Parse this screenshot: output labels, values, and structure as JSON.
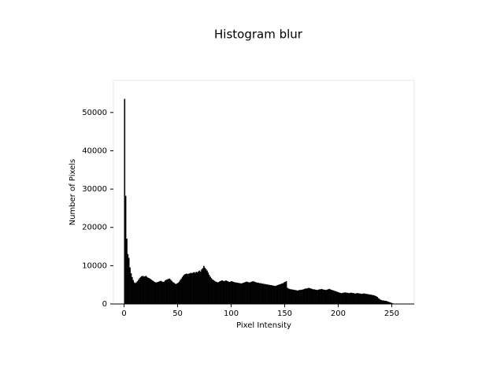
{
  "chart_data": {
    "type": "histogram",
    "title": "Histogram blur",
    "xlabel": "Pixel Intensity",
    "ylabel": "Number of Pixels",
    "color": "#000000",
    "bins": [
      0,
      1,
      2,
      3,
      4,
      5,
      6,
      7,
      8,
      9,
      10,
      11,
      12,
      13,
      14,
      15,
      16,
      17,
      18,
      19,
      20,
      21,
      22,
      23,
      24,
      25,
      26,
      27,
      28,
      29,
      30,
      31,
      32,
      33,
      34,
      35,
      36,
      37,
      38,
      39,
      40,
      41,
      42,
      43,
      44,
      45,
      46,
      47,
      48,
      49,
      50,
      51,
      52,
      53,
      54,
      55,
      56,
      57,
      58,
      59,
      60,
      61,
      62,
      63,
      64,
      65,
      66,
      67,
      68,
      69,
      70,
      71,
      72,
      73,
      74,
      75,
      76,
      77,
      78,
      79,
      80,
      81,
      82,
      83,
      84,
      85,
      86,
      87,
      88,
      89,
      90,
      91,
      92,
      93,
      94,
      95,
      96,
      97,
      98,
      99,
      100,
      101,
      102,
      103,
      104,
      105,
      106,
      107,
      108,
      109,
      110,
      111,
      112,
      113,
      114,
      115,
      116,
      117,
      118,
      119,
      120,
      121,
      122,
      123,
      124,
      125,
      126,
      127,
      128,
      129,
      130,
      131,
      132,
      133,
      134,
      135,
      136,
      137,
      138,
      139,
      140,
      141,
      142,
      143,
      144,
      145,
      146,
      147,
      148,
      149,
      150,
      151,
      152,
      153,
      154,
      155,
      156,
      157,
      158,
      159,
      160,
      161,
      162,
      163,
      164,
      165,
      166,
      167,
      168,
      169,
      170,
      171,
      172,
      173,
      174,
      175,
      176,
      177,
      178,
      179,
      180,
      181,
      182,
      183,
      184,
      185,
      186,
      187,
      188,
      189,
      190,
      191,
      192,
      193,
      194,
      195,
      196,
      197,
      198,
      199,
      200,
      201,
      202,
      203,
      204,
      205,
      206,
      207,
      208,
      209,
      210,
      211,
      212,
      213,
      214,
      215,
      216,
      217,
      218,
      219,
      220,
      221,
      222,
      223,
      224,
      225,
      226,
      227,
      228,
      229,
      230,
      231,
      232,
      233,
      234,
      235,
      236,
      237,
      238,
      239,
      240,
      241,
      242,
      243,
      244,
      245,
      246,
      247,
      248,
      249,
      250,
      251,
      252,
      253,
      254,
      255,
      256
    ],
    "counts": [
      53500,
      28200,
      17000,
      13000,
      12000,
      9500,
      8000,
      7000,
      6200,
      5600,
      5400,
      5600,
      5900,
      6300,
      6700,
      7000,
      7200,
      7300,
      7100,
      7200,
      7300,
      7000,
      6800,
      6700,
      6500,
      6300,
      6100,
      5900,
      5700,
      5600,
      5600,
      5700,
      5800,
      5900,
      6000,
      5800,
      5700,
      5800,
      6100,
      6300,
      6400,
      6500,
      6600,
      6300,
      6000,
      5700,
      5500,
      5300,
      5200,
      5300,
      5500,
      5800,
      6200,
      6600,
      7000,
      7400,
      7700,
      7800,
      7900,
      7800,
      7900,
      8000,
      8100,
      8000,
      8200,
      8300,
      8100,
      8400,
      8200,
      8500,
      8700,
      8400,
      9000,
      9300,
      9900,
      9400,
      9100,
      8700,
      8200,
      7600,
      7100,
      6700,
      6400,
      6200,
      6000,
      5800,
      5700,
      5600,
      5700,
      5900,
      6000,
      6100,
      6000,
      5900,
      6000,
      6100,
      5900,
      5800,
      5700,
      5800,
      5900,
      5800,
      5700,
      5600,
      5600,
      5500,
      5500,
      5400,
      5400,
      5300,
      5400,
      5500,
      5600,
      5700,
      5800,
      5700,
      5600,
      5600,
      5700,
      5800,
      5900,
      5800,
      5700,
      5600,
      5500,
      5500,
      5400,
      5400,
      5300,
      5300,
      5200,
      5200,
      5100,
      5100,
      5000,
      5000,
      4900,
      4900,
      4800,
      4800,
      4700,
      4700,
      4800,
      4900,
      5000,
      5100,
      5200,
      5300,
      5400,
      5600,
      5700,
      5900,
      4200,
      4000,
      3900,
      3800,
      3800,
      3700,
      3700,
      3600,
      3600,
      3500,
      3500,
      3600,
      3600,
      3700,
      3700,
      3800,
      3900,
      4000,
      4000,
      4100,
      4200,
      4100,
      4000,
      3900,
      3800,
      3800,
      3700,
      3700,
      3600,
      3700,
      3800,
      3800,
      3900,
      3800,
      3700,
      3700,
      3600,
      3700,
      3800,
      3900,
      3800,
      3700,
      3600,
      3500,
      3400,
      3300,
      3200,
      3100,
      3000,
      2900,
      2800,
      2800,
      2900,
      2900,
      3000,
      2900,
      2900,
      2800,
      2800,
      2900,
      2900,
      2800,
      2800,
      2700,
      2700,
      2800,
      2800,
      2700,
      2700,
      2600,
      2600,
      2700,
      2700,
      2600,
      2600,
      2500,
      2500,
      2400,
      2400,
      2300,
      2300,
      2200,
      2100,
      2000,
      1800,
      1500,
      1300,
      1100,
      1000,
      900,
      900,
      800,
      800,
      700,
      600,
      500,
      400,
      300,
      200,
      100,
      50,
      20,
      0,
      0
    ],
    "xlim": [
      -10,
      271
    ],
    "ylim": [
      0,
      58400
    ],
    "xticks": [
      0,
      50,
      100,
      150,
      200,
      250
    ],
    "yticks": [
      0,
      10000,
      20000,
      30000,
      40000,
      50000
    ]
  }
}
